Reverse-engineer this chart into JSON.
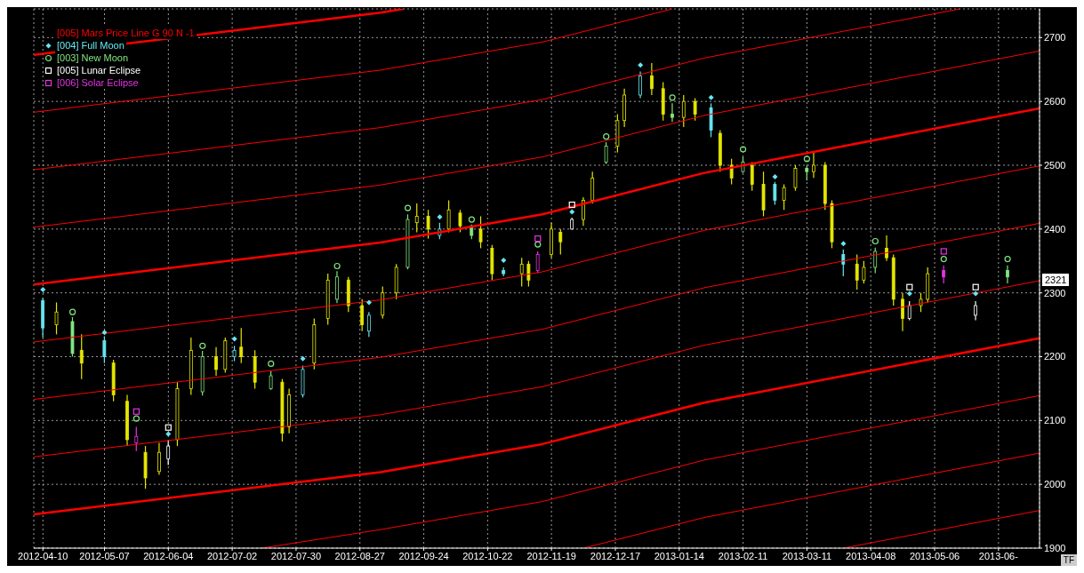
{
  "chart_data": {
    "type": "candlestick",
    "x": [
      "2012-04-10",
      "2012-04-16",
      "2012-04-23",
      "2012-04-27",
      "2012-05-07",
      "2012-05-11",
      "2012-05-17",
      "2012-05-21",
      "2012-05-25",
      "2012-05-31",
      "2012-06-04",
      "2012-06-08",
      "2012-06-14",
      "2012-06-19",
      "2012-06-25",
      "2012-06-29",
      "2012-07-03",
      "2012-07-06",
      "2012-07-12",
      "2012-07-19",
      "2012-07-24",
      "2012-07-27",
      "2012-08-02",
      "2012-08-07",
      "2012-08-13",
      "2012-08-17",
      "2012-08-22",
      "2012-08-28",
      "2012-08-31",
      "2012-09-06",
      "2012-09-12",
      "2012-09-17",
      "2012-09-21",
      "2012-09-26",
      "2012-10-01",
      "2012-10-05",
      "2012-10-10",
      "2012-10-15",
      "2012-10-19",
      "2012-10-24",
      "2012-10-29",
      "2012-11-06",
      "2012-11-09",
      "2012-11-13",
      "2012-11-19",
      "2012-11-23",
      "2012-11-28",
      "2012-12-03",
      "2012-12-07",
      "2012-12-13",
      "2012-12-18",
      "2012-12-21",
      "2012-12-28",
      "2013-01-02",
      "2013-01-07",
      "2013-01-11",
      "2013-01-16",
      "2013-01-21",
      "2013-01-28",
      "2013-02-01",
      "2013-02-06",
      "2013-02-11",
      "2013-02-15",
      "2013-02-20",
      "2013-02-25",
      "2013-03-01",
      "2013-03-06",
      "2013-03-11",
      "2013-03-14",
      "2013-03-19",
      "2013-03-22",
      "2013-03-27",
      "2013-04-02",
      "2013-04-05",
      "2013-04-10",
      "2013-04-15",
      "2013-04-18",
      "2013-04-22",
      "2013-04-25",
      "2013-04-30",
      "2013-05-03",
      "2013-05-10",
      "2013-05-24",
      "2013-06-07"
    ],
    "ohlc": [
      [
        2288,
        2292,
        2230,
        2245
      ],
      [
        2250,
        2285,
        2235,
        2270
      ],
      [
        2255,
        2262,
        2200,
        2205
      ],
      [
        2210,
        2235,
        2165,
        2190
      ],
      [
        2225,
        2232,
        2190,
        2200
      ],
      [
        2190,
        2195,
        2130,
        2140
      ],
      [
        2130,
        2140,
        2060,
        2070
      ],
      [
        2065,
        2090,
        2052,
        2075
      ],
      [
        2050,
        2060,
        1993,
        2010
      ],
      [
        2020,
        2065,
        2015,
        2050
      ],
      [
        2040,
        2069,
        2030,
        2060
      ],
      [
        2070,
        2160,
        2060,
        2150
      ],
      [
        2150,
        2230,
        2140,
        2210
      ],
      [
        2145,
        2209,
        2139,
        2200
      ],
      [
        2200,
        2215,
        2170,
        2180
      ],
      [
        2180,
        2230,
        2175,
        2225
      ],
      [
        2200,
        2217,
        2193,
        2210
      ],
      [
        2215,
        2245,
        2190,
        2200
      ],
      [
        2200,
        2210,
        2150,
        2160
      ],
      [
        2150,
        2178,
        2148,
        2170
      ],
      [
        2160,
        2165,
        2067,
        2080
      ],
      [
        2090,
        2150,
        2080,
        2140
      ],
      [
        2140,
        2186,
        2136,
        2180
      ],
      [
        2190,
        2260,
        2180,
        2250
      ],
      [
        2260,
        2330,
        2250,
        2320
      ],
      [
        2290,
        2334,
        2284,
        2325
      ],
      [
        2320,
        2325,
        2270,
        2280
      ],
      [
        2280,
        2290,
        2240,
        2250
      ],
      [
        2240,
        2270,
        2231,
        2265
      ],
      [
        2265,
        2310,
        2260,
        2300
      ],
      [
        2300,
        2345,
        2290,
        2340
      ],
      [
        2340,
        2423,
        2337,
        2415
      ],
      [
        2410,
        2440,
        2395,
        2420
      ],
      [
        2420,
        2430,
        2385,
        2400
      ],
      [
        2390,
        2410,
        2384,
        2400
      ],
      [
        2400,
        2445,
        2395,
        2430
      ],
      [
        2425,
        2430,
        2395,
        2405
      ],
      [
        2405,
        2407,
        2384,
        2390
      ],
      [
        2400,
        2420,
        2370,
        2380
      ],
      [
        2370,
        2375,
        2320,
        2330
      ],
      [
        2335,
        2340,
        2326,
        2330
      ],
      [
        2330,
        2355,
        2310,
        2345
      ],
      [
        2345,
        2350,
        2310,
        2320
      ],
      [
        2335,
        2365,
        2331,
        2360
      ],
      [
        2360,
        2410,
        2355,
        2400
      ],
      [
        2395,
        2400,
        2360,
        2380
      ],
      [
        2400,
        2418,
        2399,
        2415
      ],
      [
        2415,
        2450,
        2405,
        2445
      ],
      [
        2445,
        2490,
        2440,
        2480
      ],
      [
        2505,
        2536,
        2502,
        2530
      ],
      [
        2530,
        2580,
        2520,
        2570
      ],
      [
        2570,
        2620,
        2560,
        2610
      ],
      [
        2610,
        2647,
        2605,
        2640
      ],
      [
        2640,
        2660,
        2610,
        2620
      ],
      [
        2620,
        2630,
        2570,
        2580
      ],
      [
        2580,
        2597,
        2568,
        2575
      ],
      [
        2575,
        2610,
        2560,
        2600
      ],
      [
        2600,
        2605,
        2570,
        2580
      ],
      [
        2590,
        2597,
        2544,
        2555
      ],
      [
        2550,
        2555,
        2490,
        2500
      ],
      [
        2500,
        2510,
        2470,
        2480
      ],
      [
        2490,
        2513,
        2488,
        2505
      ],
      [
        2500,
        2505,
        2460,
        2470
      ],
      [
        2470,
        2490,
        2420,
        2430
      ],
      [
        2470,
        2474,
        2438,
        2445
      ],
      [
        2445,
        2470,
        2430,
        2465
      ],
      [
        2465,
        2500,
        2460,
        2495
      ],
      [
        2495,
        2499,
        2476,
        2490
      ],
      [
        2490,
        2520,
        2480,
        2500
      ],
      [
        2500,
        2505,
        2430,
        2440
      ],
      [
        2440,
        2445,
        2370,
        2380
      ],
      [
        2360,
        2368,
        2326,
        2345
      ],
      [
        2345,
        2360,
        2305,
        2320
      ],
      [
        2320,
        2350,
        2315,
        2340
      ],
      [
        2340,
        2371,
        2331,
        2365
      ],
      [
        2370,
        2390,
        2350,
        2355
      ],
      [
        2355,
        2360,
        2280,
        2290
      ],
      [
        2290,
        2300,
        2240,
        2260
      ],
      [
        2260,
        2287,
        2257,
        2280
      ],
      [
        2280,
        2300,
        2270,
        2290
      ],
      [
        2290,
        2340,
        2285,
        2330
      ],
      [
        2335,
        2343,
        2315,
        2325
      ],
      [
        2265,
        2287,
        2257,
        2280
      ],
      [
        2335,
        2343,
        2315,
        2325
      ]
    ],
    "colors": [
      "#66e6f0",
      "#e6e600",
      "#80e680",
      "#e6e600",
      "#66e6f0",
      "#e6e600",
      "#e6e600",
      "#e633e6",
      "#e6e600",
      "#e6e600",
      "#ffffff",
      "#e6e600",
      "#e6e600",
      "#80e680",
      "#e6e600",
      "#e6e600",
      "#66e6f0",
      "#e6e600",
      "#e6e600",
      "#80e680",
      "#e6e600",
      "#e6e600",
      "#66e6f0",
      "#e6e600",
      "#e6e600",
      "#80e680",
      "#e6e600",
      "#e6e600",
      "#66e6f0",
      "#e6e600",
      "#e6e600",
      "#80e680",
      "#e6e600",
      "#e6e600",
      "#66e6f0",
      "#e6e600",
      "#e6e600",
      "#80e680",
      "#e6e600",
      "#e6e600",
      "#66e6f0",
      "#e6e600",
      "#e6e600",
      "#e633e6",
      "#e6e600",
      "#e6e600",
      "#ffffff",
      "#e6e600",
      "#e6e600",
      "#80e680",
      "#e6e600",
      "#e6e600",
      "#66e6f0",
      "#e6e600",
      "#e6e600",
      "#80e680",
      "#e6e600",
      "#e6e600",
      "#66e6f0",
      "#e6e600",
      "#e6e600",
      "#80e680",
      "#e6e600",
      "#e6e600",
      "#66e6f0",
      "#e6e600",
      "#e6e600",
      "#80e680",
      "#e6e600",
      "#e6e600",
      "#e6e600",
      "#66e6f0",
      "#e6e600",
      "#e6e600",
      "#80e680",
      "#e6e600",
      "#e6e600",
      "#e6e600",
      "#ffffff",
      "#e6e600",
      "#e6e600",
      "#e633e6",
      "#ffffff",
      "#80e680"
    ],
    "series": [
      {
        "type": "line",
        "name": "[005] Mars Price Line G 90 N -1",
        "color": "#ff0000",
        "x": [
          "2012-04-06",
          "2012-09-05",
          "2012-09-15"
        ],
        "values": [
          2673,
          2739,
          2745
        ]
      },
      {
        "type": "line",
        "color": "#ff0000",
        "x": [
          "2012-04-06",
          "2012-09-05",
          "2012-11-15",
          "2013-01-11"
        ],
        "values": [
          2583,
          2649,
          2693,
          2745
        ]
      },
      {
        "type": "line",
        "color": "#ff0000",
        "x": [
          "2012-04-06",
          "2012-09-05",
          "2012-11-15",
          "2013-01-25",
          "2013-05-17"
        ],
        "values": [
          2493,
          2559,
          2603,
          2668,
          2745
        ]
      },
      {
        "type": "line",
        "color": "#ff0000",
        "x": [
          "2012-04-06",
          "2012-09-05",
          "2012-11-15",
          "2013-01-25",
          "2013-06-21"
        ],
        "values": [
          2403,
          2469,
          2513,
          2578,
          2679
        ]
      },
      {
        "type": "line",
        "color": "#ff0000",
        "x": [
          "2012-04-06",
          "2012-09-05",
          "2012-11-15",
          "2013-01-25",
          "2013-06-21"
        ],
        "values": [
          2313,
          2379,
          2423,
          2488,
          2589
        ]
      },
      {
        "type": "line",
        "color": "#ff0000",
        "x": [
          "2012-04-06",
          "2012-09-05",
          "2012-11-15",
          "2013-01-25",
          "2013-06-21"
        ],
        "values": [
          2223,
          2289,
          2333,
          2398,
          2499
        ]
      },
      {
        "type": "line",
        "color": "#ff0000",
        "x": [
          "2012-04-06",
          "2012-09-05",
          "2012-11-15",
          "2013-01-25",
          "2013-06-21"
        ],
        "values": [
          2133,
          2199,
          2243,
          2308,
          2409
        ]
      },
      {
        "type": "line",
        "color": "#ff0000",
        "x": [
          "2012-04-06",
          "2012-09-05",
          "2012-11-15",
          "2013-01-25",
          "2013-06-21"
        ],
        "values": [
          2043,
          2109,
          2153,
          2218,
          2319
        ]
      },
      {
        "type": "line",
        "color": "#ff0000",
        "x": [
          "2012-04-06",
          "2012-09-05",
          "2012-11-15",
          "2013-01-25",
          "2013-06-21"
        ],
        "values": [
          1953,
          2019,
          2063,
          2128,
          2229
        ]
      },
      {
        "type": "line",
        "color": "#ff0000",
        "x": [
          "2012-07-15",
          "2012-09-05",
          "2012-11-15",
          "2013-01-25",
          "2013-06-21"
        ],
        "values": [
          1900,
          1929,
          1973,
          2038,
          2139
        ]
      },
      {
        "type": "line",
        "color": "#ff0000",
        "x": [
          "2012-12-03",
          "2013-01-25",
          "2013-06-21"
        ],
        "values": [
          1900,
          1948,
          2049
        ]
      },
      {
        "type": "line",
        "color": "#ff0000",
        "x": [
          "2013-03-27",
          "2013-06-21"
        ],
        "values": [
          1900,
          1959
        ]
      },
      {
        "type": "scatter",
        "name": "[004] Full Moon",
        "color": "#66e6f0",
        "marker": "diamond",
        "x": [
          "2012-04-10",
          "2012-05-07",
          "2012-06-04",
          "2012-07-03",
          "2012-08-02",
          "2012-08-31",
          "2012-10-01",
          "2012-10-29",
          "2012-11-28",
          "2012-12-28",
          "2013-01-28",
          "2013-02-25",
          "2013-03-27",
          "2013-04-25",
          "2013-05-24"
        ],
        "values": [
          2305,
          2238,
          2079,
          2228,
          2197,
          2285,
          2419,
          2351,
          2427,
          2657,
          2606,
          2482,
          2377,
          2299,
          2299
        ]
      },
      {
        "type": "scatter",
        "name": "[003] New Moon",
        "color": "#80e680",
        "marker": "circle",
        "x": [
          "2012-04-23",
          "2012-05-21",
          "2012-06-19",
          "2012-07-19",
          "2012-08-17",
          "2012-09-17",
          "2012-10-15",
          "2012-11-13",
          "2012-12-13",
          "2013-01-11",
          "2013-02-11",
          "2013-03-11",
          "2013-04-10",
          "2013-05-10",
          "2013-06-07"
        ],
        "values": [
          2270,
          2103,
          2217,
          2189,
          2342,
          2433,
          2415,
          2376,
          2545,
          2606,
          2525,
          2510,
          2381,
          2353,
          2353
        ]
      },
      {
        "type": "scatter",
        "name": "[005] Lunar Eclipse",
        "color": "#ffffff",
        "marker": "square",
        "x": [
          "2012-06-04",
          "2012-11-28",
          "2013-04-25",
          "2013-05-24"
        ],
        "values": [
          2089,
          2438,
          2309,
          2309
        ]
      },
      {
        "type": "scatter",
        "name": "[006] Solar Eclipse",
        "color": "#e633e6",
        "marker": "square",
        "x": [
          "2012-05-21",
          "2012-11-13",
          "2013-05-10"
        ],
        "values": [
          2114,
          2385,
          2365
        ]
      }
    ],
    "xlim": [
      "2012-04-06",
      "2013-06-21"
    ],
    "xticks": [
      "2012-04-10",
      "2012-05-07",
      "2012-06-04",
      "2012-07-02",
      "2012-07-30",
      "2012-08-27",
      "2012-09-24",
      "2012-10-22",
      "2012-11-19",
      "2012-12-17",
      "2013-01-14",
      "2013-02-11",
      "2013-03-11",
      "2013-04-08",
      "2013-05-06",
      {
        "value": "2013-06-03",
        "label": "2013-06-"
      }
    ],
    "ylim": [
      1900,
      2745
    ],
    "yticks": [
      1900,
      2000,
      2100,
      2200,
      2300,
      2400,
      2500,
      2600,
      2700
    ],
    "grid": true,
    "legend": "top left",
    "annotations": [
      {
        "text": "2321",
        "y": 2321
      },
      "TF"
    ]
  }
}
